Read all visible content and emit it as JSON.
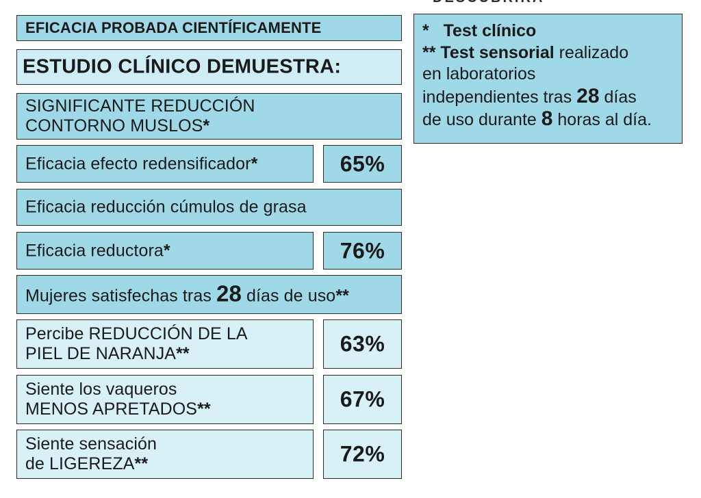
{
  "top_cut_text": "DESCUBRIRÁ",
  "header": {
    "probada": "EFICACIA PROBADA CIENTÍFICAMENTE",
    "estudio": "ESTUDIO CLÍNICO DEMUESTRA:"
  },
  "notes": {
    "star1_mark": "*",
    "star1_text": "Test clínico",
    "star2_mark": "**",
    "star2_text": "Test sensorial",
    "line_a": "realizado",
    "line_b": "en laboratorios",
    "line_c": "independientes tras",
    "days": "28",
    "line_d": "días",
    "line_e": "de uso durante",
    "hours": "8",
    "line_f": "horas al día."
  },
  "rows": {
    "contorno": {
      "line1": "SIGNIFICANTE REDUCCIÓN",
      "line2": "CONTORNO MUSLOS",
      "mark": "*"
    },
    "redensificador": {
      "label": "Eficacia efecto redensificador",
      "mark": "*",
      "value": "65%"
    },
    "cumulos": {
      "label": "Eficacia reducción cúmulos de grasa"
    },
    "reductora": {
      "label": "Eficacia reductora",
      "mark": "*",
      "value": "76%"
    },
    "satisfechas": {
      "pre": "Mujeres satisfechas tras ",
      "num": "28",
      "post": " días de uso",
      "mark": "**"
    },
    "naranja": {
      "line1": "Percibe REDUCCIÓN DE LA",
      "line2": "PIEL DE NARANJA",
      "mark": "**",
      "value": "63%"
    },
    "vaqueros": {
      "line1": "Siente los vaqueros",
      "line2": "MENOS APRETADOS",
      "mark": "**",
      "value": "67%"
    },
    "ligereza": {
      "line1": "Siente sensación",
      "line2": "de LIGEREZA",
      "mark": "**",
      "value": "72%"
    }
  },
  "colors": {
    "box_blue": "#9fd8e6",
    "box_light": "#cfedf4",
    "border": "#2a2a2a"
  }
}
